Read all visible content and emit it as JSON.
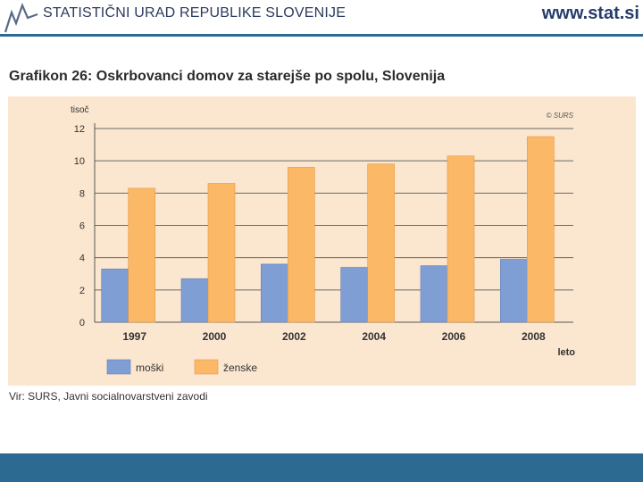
{
  "header": {
    "org_name": "STATISTIČNI URAD REPUBLIKE SLOVENIJE",
    "url": "www.stat.si",
    "accent_color": "#2d6a92",
    "logo_icon": "trend-line-icon"
  },
  "chart_data": {
    "type": "bar",
    "title": "Grafikon 26: Oskrbovanci domov za starejše po spolu, Slovenija",
    "ylabel": "tisoč",
    "xlabel": "leto",
    "watermark": "© SURS",
    "categories": [
      "1997",
      "2000",
      "2002",
      "2004",
      "2006",
      "2008"
    ],
    "series": [
      {
        "name": "moški",
        "color": "#7f9fd4",
        "values": [
          3.3,
          2.7,
          3.6,
          3.4,
          3.5,
          3.9
        ]
      },
      {
        "name": "ženske",
        "color": "#fbb866",
        "values": [
          8.3,
          8.6,
          9.6,
          9.8,
          10.3,
          11.5
        ]
      }
    ],
    "yticks": [
      "0",
      "2",
      "4",
      "6",
      "8",
      "10",
      "12"
    ],
    "ylim": [
      0,
      12
    ],
    "grid": true,
    "legend_position": "bottom-left"
  },
  "source": "Vir: SURS, Javni socialnovarstveni zavodi"
}
